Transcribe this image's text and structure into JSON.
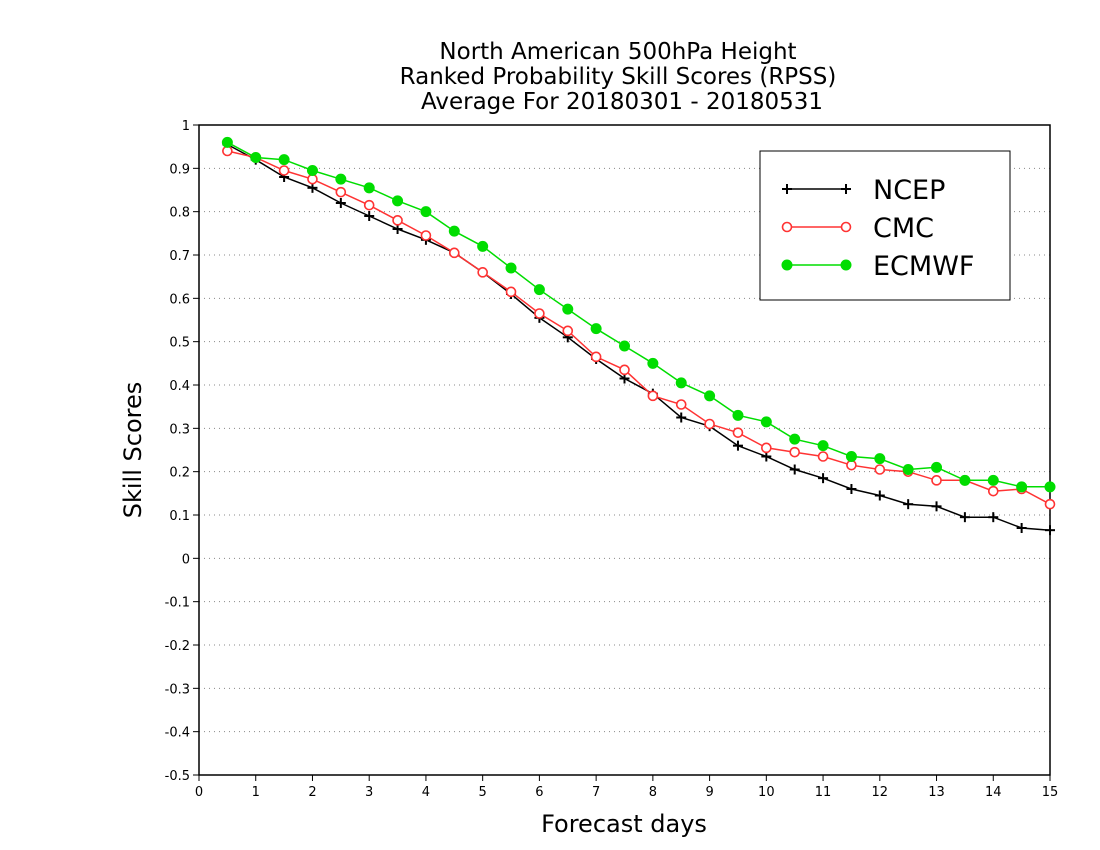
{
  "chart_data": {
    "type": "line",
    "title": [
      "North American 500hPa Height",
      "Ranked Probability Skill Scores (RPSS)",
      "Average For 20180301 - 20180531"
    ],
    "xlabel": "Forecast days",
    "ylabel": "Skill Scores",
    "xlim": [
      0,
      15
    ],
    "ylim": [
      -0.5,
      1
    ],
    "xticks": [
      "0",
      "1",
      "2",
      "3",
      "4",
      "5",
      "6",
      "7",
      "8",
      "9",
      "10",
      "11",
      "12",
      "13",
      "14",
      "15"
    ],
    "yticks": [
      "1",
      "0.9",
      "0.8",
      "0.7",
      "0.6",
      "0.5",
      "0.4",
      "0.3",
      "0.2",
      "0.1",
      "0",
      "-0.1",
      "-0.2",
      "-0.3",
      "-0.4",
      "-0.5"
    ],
    "grid": "horizontal dotted",
    "legend_position": "top-right",
    "x": [
      0.5,
      1,
      1.5,
      2,
      2.5,
      3,
      3.5,
      4,
      4.5,
      5,
      5.5,
      6,
      6.5,
      7,
      7.5,
      8,
      8.5,
      9,
      9.5,
      10,
      10.5,
      11,
      11.5,
      12,
      12.5,
      13,
      13.5,
      14,
      14.5,
      15
    ],
    "series": [
      {
        "name": "NCEP",
        "color": "#000000",
        "marker": "plus",
        "values": [
          0.955,
          0.92,
          0.88,
          0.855,
          0.82,
          0.79,
          0.76,
          0.735,
          0.705,
          0.66,
          0.61,
          0.555,
          0.51,
          0.46,
          0.415,
          0.38,
          0.325,
          0.305,
          0.26,
          0.235,
          0.205,
          0.185,
          0.16,
          0.145,
          0.125,
          0.12,
          0.095,
          0.095,
          0.07,
          0.065
        ]
      },
      {
        "name": "CMC",
        "color": "#ff3333",
        "marker": "open-circle",
        "values": [
          0.94,
          0.925,
          0.895,
          0.875,
          0.845,
          0.815,
          0.78,
          0.745,
          0.705,
          0.66,
          0.615,
          0.565,
          0.525,
          0.465,
          0.435,
          0.375,
          0.355,
          0.31,
          0.29,
          0.255,
          0.245,
          0.235,
          0.215,
          0.205,
          0.2,
          0.18,
          0.18,
          0.155,
          0.16,
          0.125
        ]
      },
      {
        "name": "ECMWF",
        "color": "#00dd00",
        "marker": "filled-circle",
        "values": [
          0.96,
          0.925,
          0.92,
          0.895,
          0.875,
          0.855,
          0.825,
          0.8,
          0.755,
          0.72,
          0.67,
          0.62,
          0.575,
          0.53,
          0.49,
          0.45,
          0.405,
          0.375,
          0.33,
          0.315,
          0.275,
          0.26,
          0.235,
          0.23,
          0.205,
          0.21,
          0.18,
          0.18,
          0.165,
          0.165
        ]
      }
    ]
  }
}
